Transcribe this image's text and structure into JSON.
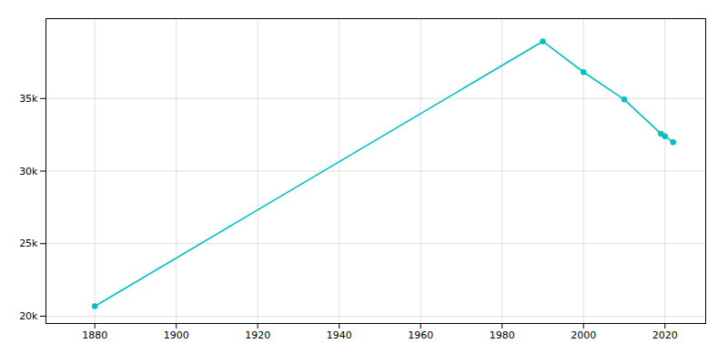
{
  "chart_data": {
    "type": "line",
    "x": [
      1880,
      1990,
      2000,
      2010,
      2019,
      2020,
      2022
    ],
    "values": [
      20693,
      38936,
      36817,
      34932,
      32574,
      32400,
      31997
    ],
    "color": "#00c0c0",
    "marker": "circle",
    "xlim": [
      1868,
      2030
    ],
    "xticks": [
      1880,
      1900,
      1920,
      1940,
      1960,
      1980,
      2000,
      2020
    ],
    "ylim": [
      19500,
      40500
    ],
    "yticks": [
      {
        "value": 20000,
        "label": "20k"
      },
      {
        "value": 25000,
        "label": "25k"
      },
      {
        "value": 30000,
        "label": "30k"
      },
      {
        "value": 35000,
        "label": "35k"
      }
    ],
    "grid": true
  }
}
